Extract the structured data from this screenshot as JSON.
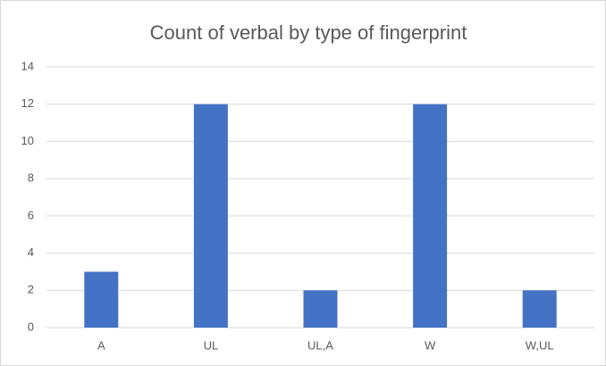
{
  "chart_data": {
    "type": "bar",
    "title": "Count of verbal by type of fingerprint",
    "categories": [
      "A",
      "UL",
      "UL,A",
      "W",
      "W,UL"
    ],
    "values": [
      3,
      12,
      2,
      12,
      2
    ],
    "color": "#4472c4",
    "ylim": [
      0,
      14
    ],
    "yticks": [
      0,
      2,
      4,
      6,
      8,
      10,
      12,
      14
    ],
    "grid": true
  }
}
